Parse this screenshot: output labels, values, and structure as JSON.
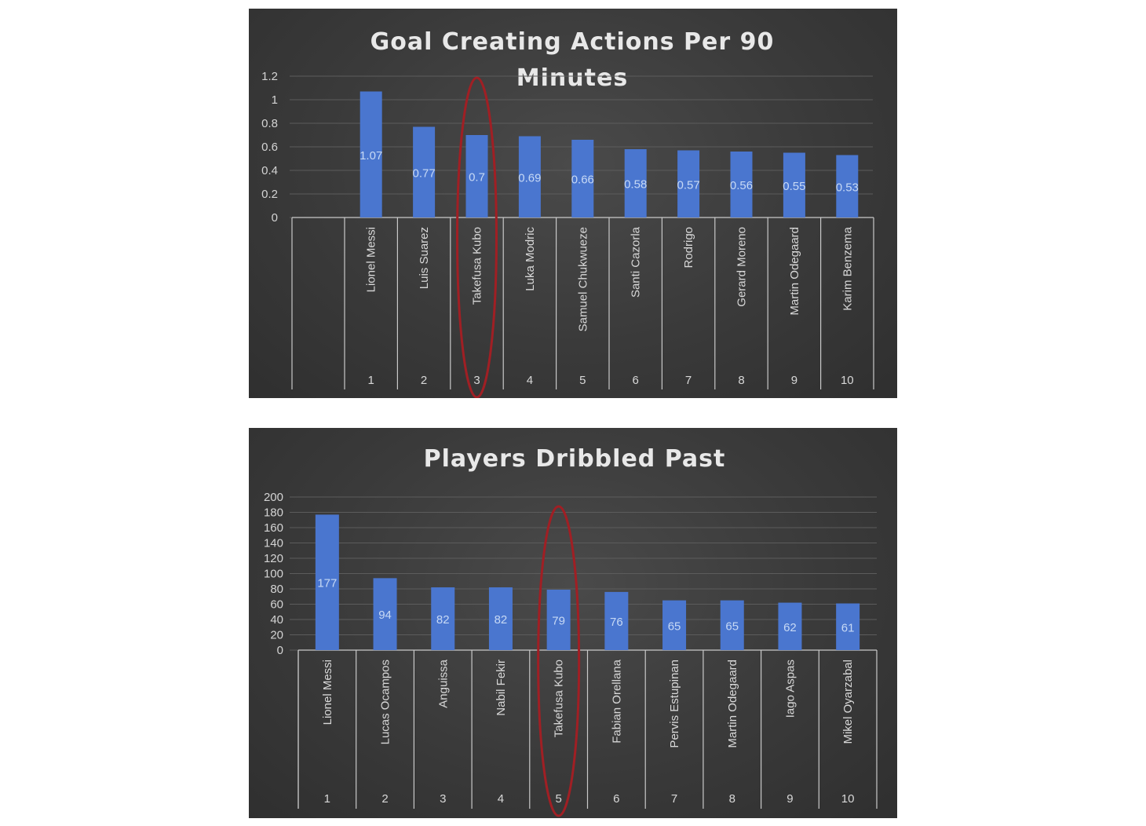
{
  "chart_data": [
    {
      "type": "bar",
      "title_lines": [
        "Goal Creating Actions Per 90",
        "Minutes"
      ],
      "categories": [
        "Lionel Messi",
        "Luis Suarez",
        "Takefusa Kubo",
        "Luka Modric",
        "Samuel Chukwueze",
        "Santi Cazorla",
        "Rodrigo",
        "Gerard Moreno",
        "Martin Odegaard",
        "Karim Benzema"
      ],
      "ranks": [
        "1",
        "2",
        "3",
        "4",
        "5",
        "6",
        "7",
        "8",
        "9",
        "10"
      ],
      "values": [
        1.07,
        0.77,
        0.7,
        0.69,
        0.66,
        0.58,
        0.57,
        0.56,
        0.55,
        0.53
      ],
      "value_labels": [
        "1.07",
        "0.77",
        "0.7",
        "0.69",
        "0.66",
        "0.58",
        "0.57",
        "0.56",
        "0.55",
        "0.53"
      ],
      "ylim": [
        0,
        1.2
      ],
      "yticks": [
        "0",
        "0.2",
        "0.4",
        "0.6",
        "0.8",
        "1",
        "1.2"
      ],
      "ytick_values": [
        0,
        0.2,
        0.4,
        0.6,
        0.8,
        1,
        1.2
      ],
      "grid": true,
      "highlighted_category": "Takefusa Kubo",
      "bar_color": "#4a76cf",
      "highlight_color": "#a01f24"
    },
    {
      "type": "bar",
      "title_lines": [
        "Players Dribbled Past"
      ],
      "categories": [
        "Lionel Messi",
        "Lucas Ocampos",
        "Anguissa",
        "Nabil Fekir",
        "Takefusa Kubo",
        "Fabian Orellana",
        "Pervis Estupinan",
        "Martin Odegaard",
        "Iago Aspas",
        "Mikel Oyarzabal"
      ],
      "ranks": [
        "1",
        "2",
        "3",
        "4",
        "5",
        "6",
        "7",
        "8",
        "9",
        "10"
      ],
      "values": [
        177,
        94,
        82,
        82,
        79,
        76,
        65,
        65,
        62,
        61
      ],
      "value_labels": [
        "177",
        "94",
        "82",
        "82",
        "79",
        "76",
        "65",
        "65",
        "62",
        "61"
      ],
      "ylim": [
        0,
        200
      ],
      "yticks": [
        "0",
        "20",
        "40",
        "60",
        "80",
        "100",
        "120",
        "140",
        "160",
        "180",
        "200"
      ],
      "ytick_values": [
        0,
        20,
        40,
        60,
        80,
        100,
        120,
        140,
        160,
        180,
        200
      ],
      "grid": true,
      "highlighted_category": "Takefusa Kubo",
      "bar_color": "#4a76cf",
      "highlight_color": "#a01f24"
    }
  ]
}
